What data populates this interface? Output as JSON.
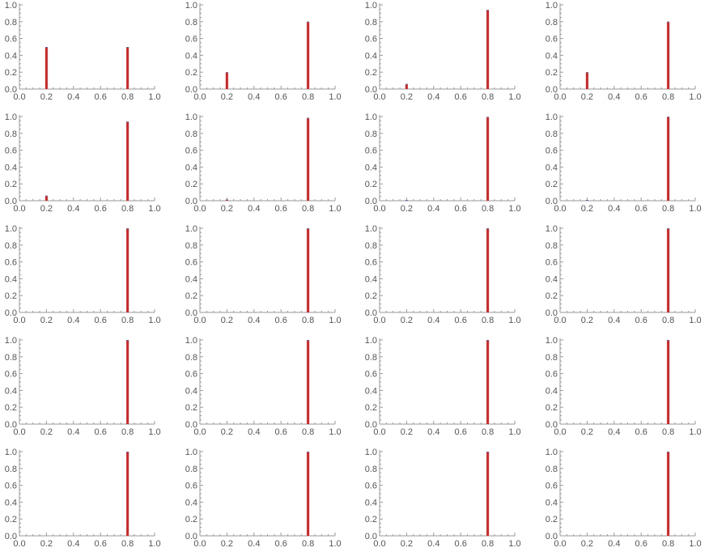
{
  "colors": {
    "bar": "#e02020",
    "bar_edge": "#6a6aa0",
    "axis": "#9a9a9a",
    "tick_text": "#555555"
  },
  "chart_data": [
    {
      "type": "bar",
      "x": [
        0.2,
        0.8
      ],
      "values": [
        0.5,
        0.5
      ],
      "xlim": [
        0,
        1
      ],
      "ylim": [
        0,
        1
      ],
      "xticks": [
        "0.0",
        "0.2",
        "0.4",
        "0.6",
        "0.8",
        "1.0"
      ],
      "yticks": [
        "0.0",
        "0.2",
        "0.4",
        "0.6",
        "0.8",
        "1.0"
      ]
    },
    {
      "type": "bar",
      "x": [
        0.2,
        0.8
      ],
      "values": [
        0.2,
        0.8
      ],
      "xlim": [
        0,
        1
      ],
      "ylim": [
        0,
        1
      ],
      "xticks": [
        "0.0",
        "0.2",
        "0.4",
        "0.6",
        "0.8",
        "1.0"
      ],
      "yticks": [
        "0.0",
        "0.2",
        "0.4",
        "0.6",
        "0.8",
        "1.0"
      ]
    },
    {
      "type": "bar",
      "x": [
        0.2,
        0.8
      ],
      "values": [
        0.06,
        0.94
      ],
      "xlim": [
        0,
        1
      ],
      "ylim": [
        0,
        1
      ],
      "xticks": [
        "0.0",
        "0.2",
        "0.4",
        "0.6",
        "0.8",
        "1.0"
      ],
      "yticks": [
        "0.0",
        "0.2",
        "0.4",
        "0.6",
        "0.8",
        "1.0"
      ]
    },
    {
      "type": "bar",
      "x": [
        0.2,
        0.8
      ],
      "values": [
        0.2,
        0.8
      ],
      "xlim": [
        0,
        1
      ],
      "ylim": [
        0,
        1
      ],
      "xticks": [
        "0.0",
        "0.2",
        "0.4",
        "0.6",
        "0.8",
        "1.0"
      ],
      "yticks": [
        "0.0",
        "0.2",
        "0.4",
        "0.6",
        "0.8",
        "1.0"
      ]
    },
    {
      "type": "bar",
      "x": [
        0.2,
        0.8
      ],
      "values": [
        0.06,
        0.94
      ],
      "xlim": [
        0,
        1
      ],
      "ylim": [
        0,
        1
      ],
      "xticks": [
        "0.0",
        "0.2",
        "0.4",
        "0.6",
        "0.8",
        "1.0"
      ],
      "yticks": [
        "0.0",
        "0.2",
        "0.4",
        "0.6",
        "0.8",
        "1.0"
      ]
    },
    {
      "type": "bar",
      "x": [
        0.2,
        0.8
      ],
      "values": [
        0.015,
        0.985
      ],
      "xlim": [
        0,
        1
      ],
      "ylim": [
        0,
        1
      ],
      "xticks": [
        "0.0",
        "0.2",
        "0.4",
        "0.6",
        "0.8",
        "1.0"
      ],
      "yticks": [
        "0.0",
        "0.2",
        "0.4",
        "0.6",
        "0.8",
        "1.0"
      ]
    },
    {
      "type": "bar",
      "x": [
        0.2,
        0.8
      ],
      "values": [
        0.004,
        0.996
      ],
      "xlim": [
        0,
        1
      ],
      "ylim": [
        0,
        1
      ],
      "xticks": [
        "0.0",
        "0.2",
        "0.4",
        "0.6",
        "0.8",
        "1.0"
      ],
      "yticks": [
        "0.0",
        "0.2",
        "0.4",
        "0.6",
        "0.8",
        "1.0"
      ]
    },
    {
      "type": "bar",
      "x": [
        0.2,
        0.8
      ],
      "values": [
        0.002,
        0.998
      ],
      "xlim": [
        0,
        1
      ],
      "ylim": [
        0,
        1
      ],
      "xticks": [
        "0.0",
        "0.2",
        "0.4",
        "0.6",
        "0.8",
        "1.0"
      ],
      "yticks": [
        "0.0",
        "0.2",
        "0.4",
        "0.6",
        "0.8",
        "1.0"
      ]
    },
    {
      "type": "bar",
      "x": [
        0.2,
        0.8
      ],
      "values": [
        0.0,
        1.0
      ],
      "xlim": [
        0,
        1
      ],
      "ylim": [
        0,
        1
      ],
      "xticks": [
        "0.0",
        "0.2",
        "0.4",
        "0.6",
        "0.8",
        "1.0"
      ],
      "yticks": [
        "0.0",
        "0.2",
        "0.4",
        "0.6",
        "0.8",
        "1.0"
      ]
    },
    {
      "type": "bar",
      "x": [
        0.2,
        0.8
      ],
      "values": [
        0.0,
        1.0
      ],
      "xlim": [
        0,
        1
      ],
      "ylim": [
        0,
        1
      ],
      "xticks": [
        "0.0",
        "0.2",
        "0.4",
        "0.6",
        "0.8",
        "1.0"
      ],
      "yticks": [
        "0.0",
        "0.2",
        "0.4",
        "0.6",
        "0.8",
        "1.0"
      ]
    },
    {
      "type": "bar",
      "x": [
        0.2,
        0.8
      ],
      "values": [
        0.0,
        1.0
      ],
      "xlim": [
        0,
        1
      ],
      "ylim": [
        0,
        1
      ],
      "xticks": [
        "0.0",
        "0.2",
        "0.4",
        "0.6",
        "0.8",
        "1.0"
      ],
      "yticks": [
        "0.0",
        "0.2",
        "0.4",
        "0.6",
        "0.8",
        "1.0"
      ]
    },
    {
      "type": "bar",
      "x": [
        0.2,
        0.8
      ],
      "values": [
        0.0,
        1.0
      ],
      "xlim": [
        0,
        1
      ],
      "ylim": [
        0,
        1
      ],
      "xticks": [
        "0.0",
        "0.2",
        "0.4",
        "0.6",
        "0.8",
        "1.0"
      ],
      "yticks": [
        "0.0",
        "0.2",
        "0.4",
        "0.6",
        "0.8",
        "1.0"
      ]
    },
    {
      "type": "bar",
      "x": [
        0.2,
        0.8
      ],
      "values": [
        0.0,
        1.0
      ],
      "xlim": [
        0,
        1
      ],
      "ylim": [
        0,
        1
      ],
      "xticks": [
        "0.0",
        "0.2",
        "0.4",
        "0.6",
        "0.8",
        "1.0"
      ],
      "yticks": [
        "0.0",
        "0.2",
        "0.4",
        "0.6",
        "0.8",
        "1.0"
      ]
    },
    {
      "type": "bar",
      "x": [
        0.2,
        0.8
      ],
      "values": [
        0.0,
        1.0
      ],
      "xlim": [
        0,
        1
      ],
      "ylim": [
        0,
        1
      ],
      "xticks": [
        "0.0",
        "0.2",
        "0.4",
        "0.6",
        "0.8",
        "1.0"
      ],
      "yticks": [
        "0.0",
        "0.2",
        "0.4",
        "0.6",
        "0.8",
        "1.0"
      ]
    },
    {
      "type": "bar",
      "x": [
        0.2,
        0.8
      ],
      "values": [
        0.0,
        1.0
      ],
      "xlim": [
        0,
        1
      ],
      "ylim": [
        0,
        1
      ],
      "xticks": [
        "0.0",
        "0.2",
        "0.4",
        "0.6",
        "0.8",
        "1.0"
      ],
      "yticks": [
        "0.0",
        "0.2",
        "0.4",
        "0.6",
        "0.8",
        "1.0"
      ]
    },
    {
      "type": "bar",
      "x": [
        0.2,
        0.8
      ],
      "values": [
        0.0,
        1.0
      ],
      "xlim": [
        0,
        1
      ],
      "ylim": [
        0,
        1
      ],
      "xticks": [
        "0.0",
        "0.2",
        "0.4",
        "0.6",
        "0.8",
        "1.0"
      ],
      "yticks": [
        "0.0",
        "0.2",
        "0.4",
        "0.6",
        "0.8",
        "1.0"
      ]
    },
    {
      "type": "bar",
      "x": [
        0.2,
        0.8
      ],
      "values": [
        0.0,
        1.0
      ],
      "xlim": [
        0,
        1
      ],
      "ylim": [
        0,
        1
      ],
      "xticks": [
        "0.0",
        "0.2",
        "0.4",
        "0.6",
        "0.8",
        "1.0"
      ],
      "yticks": [
        "0.0",
        "0.2",
        "0.4",
        "0.6",
        "0.8",
        "1.0"
      ]
    },
    {
      "type": "bar",
      "x": [
        0.2,
        0.8
      ],
      "values": [
        0.0,
        1.0
      ],
      "xlim": [
        0,
        1
      ],
      "ylim": [
        0,
        1
      ],
      "xticks": [
        "0.0",
        "0.2",
        "0.4",
        "0.6",
        "0.8",
        "1.0"
      ],
      "yticks": [
        "0.0",
        "0.2",
        "0.4",
        "0.6",
        "0.8",
        "1.0"
      ]
    },
    {
      "type": "bar",
      "x": [
        0.2,
        0.8
      ],
      "values": [
        0.0,
        1.0
      ],
      "xlim": [
        0,
        1
      ],
      "ylim": [
        0,
        1
      ],
      "xticks": [
        "0.0",
        "0.2",
        "0.4",
        "0.6",
        "0.8",
        "1.0"
      ],
      "yticks": [
        "0.0",
        "0.2",
        "0.4",
        "0.6",
        "0.8",
        "1.0"
      ]
    },
    {
      "type": "bar",
      "x": [
        0.2,
        0.8
      ],
      "values": [
        0.0,
        1.0
      ],
      "xlim": [
        0,
        1
      ],
      "ylim": [
        0,
        1
      ],
      "xticks": [
        "0.0",
        "0.2",
        "0.4",
        "0.6",
        "0.8",
        "1.0"
      ],
      "yticks": [
        "0.0",
        "0.2",
        "0.4",
        "0.6",
        "0.8",
        "1.0"
      ]
    }
  ]
}
